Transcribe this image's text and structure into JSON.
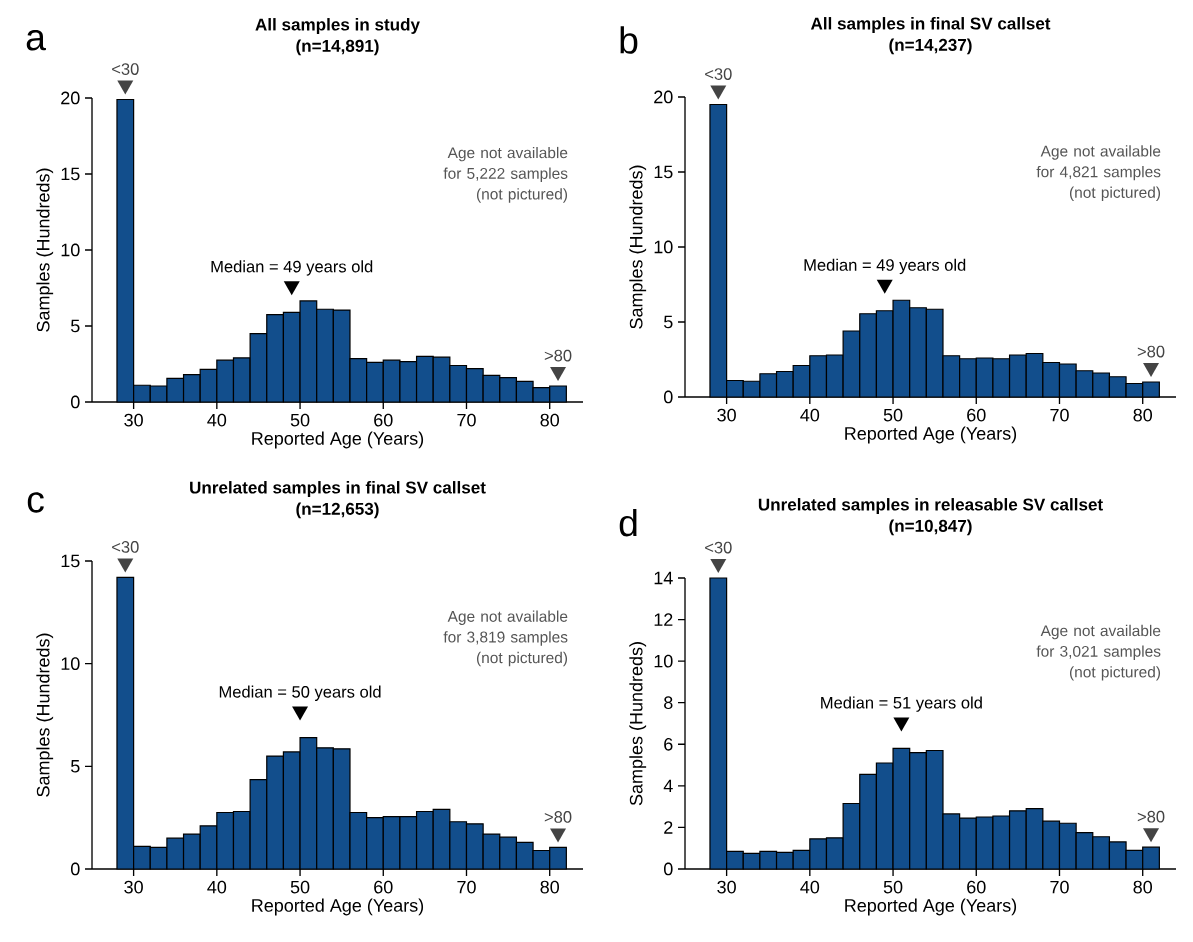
{
  "chart_data": [
    {
      "type": "histogram",
      "title": "All samples in study",
      "subtitle": "(n=14,891)",
      "xlabel": "Reported Age (Years)",
      "ylabel": "Samples (Hundreds)",
      "color": "#124e8c",
      "bins": [
        28,
        30,
        32,
        34,
        36,
        38,
        40,
        42,
        44,
        46,
        48,
        50,
        52,
        54,
        56,
        58,
        60,
        62,
        64,
        66,
        68,
        70,
        72,
        74,
        76,
        78,
        80,
        82
      ],
      "values": [
        19.9,
        1.1,
        1.05,
        1.55,
        1.8,
        2.15,
        2.75,
        2.9,
        4.5,
        5.75,
        5.9,
        6.65,
        6.1,
        6.05,
        2.85,
        2.6,
        2.75,
        2.65,
        3.0,
        2.95,
        2.4,
        2.2,
        1.75,
        1.6,
        1.35,
        0.95,
        1.05
      ],
      "xlim": [
        25,
        84
      ],
      "ylim": [
        0,
        20
      ],
      "xticks": [
        30,
        40,
        50,
        60,
        70,
        80
      ],
      "yticks": [
        0,
        5,
        10,
        15,
        20
      ],
      "annotations": [
        "a",
        {
          "text": "<30",
          "x": 29,
          "y": 19.9
        },
        {
          "text": ">80",
          "x": 81,
          "y": 1.05
        },
        {
          "text": "Median = 49 years old",
          "x": 49,
          "y": 5.9
        },
        "Age not available for 5,222 samples (not pictured)"
      ]
    },
    {
      "type": "histogram",
      "title": "All samples in final SV callset",
      "subtitle": "(n=14,237)",
      "xlabel": "Reported Age (Years)",
      "ylabel": "Samples (Hundreds)",
      "color": "#124e8c",
      "bins": [
        28,
        30,
        32,
        34,
        36,
        38,
        40,
        42,
        44,
        46,
        48,
        50,
        52,
        54,
        56,
        58,
        60,
        62,
        64,
        66,
        68,
        70,
        72,
        74,
        76,
        78,
        80,
        82
      ],
      "values": [
        19.5,
        1.1,
        1.05,
        1.55,
        1.7,
        2.1,
        2.75,
        2.8,
        4.4,
        5.55,
        5.75,
        6.45,
        5.95,
        5.85,
        2.75,
        2.55,
        2.6,
        2.55,
        2.8,
        2.9,
        2.3,
        2.2,
        1.75,
        1.6,
        1.35,
        0.9,
        1.0
      ],
      "xlim": [
        25,
        84
      ],
      "ylim": [
        0,
        20
      ],
      "xticks": [
        30,
        40,
        50,
        60,
        70,
        80
      ],
      "yticks": [
        0,
        5,
        10,
        15,
        20
      ],
      "annotations": [
        "b",
        {
          "text": "<30",
          "x": 29,
          "y": 19.5
        },
        {
          "text": ">80",
          "x": 81,
          "y": 1.0
        },
        {
          "text": "Median = 49 years old",
          "x": 49,
          "y": 5.75
        },
        "Age not available for 4,821 samples (not pictured)"
      ]
    },
    {
      "type": "histogram",
      "title": "Unrelated samples in final SV callset",
      "subtitle": "(n=12,653)",
      "xlabel": "Reported Age (Years)",
      "ylabel": "Samples (Hundreds)",
      "color": "#124e8c",
      "bins": [
        28,
        30,
        32,
        34,
        36,
        38,
        40,
        42,
        44,
        46,
        48,
        50,
        52,
        54,
        56,
        58,
        60,
        62,
        64,
        66,
        68,
        70,
        72,
        74,
        76,
        78,
        80,
        82
      ],
      "values": [
        14.2,
        1.1,
        1.05,
        1.5,
        1.7,
        2.1,
        2.75,
        2.8,
        4.35,
        5.5,
        5.7,
        6.4,
        5.9,
        5.85,
        2.75,
        2.5,
        2.55,
        2.55,
        2.8,
        2.9,
        2.3,
        2.2,
        1.7,
        1.55,
        1.3,
        0.9,
        1.05
      ],
      "xlim": [
        25,
        84
      ],
      "ylim": [
        0,
        15
      ],
      "xticks": [
        30,
        40,
        50,
        60,
        70,
        80
      ],
      "yticks": [
        0,
        5,
        10,
        15
      ],
      "annotations": [
        "c",
        {
          "text": "<30",
          "x": 29,
          "y": 14.2
        },
        {
          "text": ">80",
          "x": 81,
          "y": 1.05
        },
        {
          "text": "Median = 50 years old",
          "x": 50,
          "y": 6.4
        },
        "Age not available for 3,819 samples (not pictured)"
      ]
    },
    {
      "type": "histogram",
      "title": "Unrelated samples in releasable SV callset",
      "subtitle": "(n=10,847)",
      "xlabel": "Reported Age (Years)",
      "ylabel": "Samples (Hundreds)",
      "color": "#124e8c",
      "bins": [
        28,
        30,
        32,
        34,
        36,
        38,
        40,
        42,
        44,
        46,
        48,
        50,
        52,
        54,
        56,
        58,
        60,
        62,
        64,
        66,
        68,
        70,
        72,
        74,
        76,
        78,
        80,
        82
      ],
      "values": [
        14.0,
        0.85,
        0.75,
        0.85,
        0.8,
        0.9,
        1.45,
        1.5,
        3.15,
        4.55,
        5.1,
        5.8,
        5.6,
        5.7,
        2.65,
        2.45,
        2.5,
        2.55,
        2.8,
        2.9,
        2.3,
        2.2,
        1.75,
        1.55,
        1.3,
        0.9,
        1.05
      ],
      "xlim": [
        25,
        84
      ],
      "ylim": [
        0,
        14
      ],
      "xticks": [
        30,
        40,
        50,
        60,
        70,
        80
      ],
      "yticks": [
        0,
        2,
        4,
        6,
        8,
        10,
        12,
        14
      ],
      "annotations": [
        "d",
        {
          "text": "<30",
          "x": 29,
          "y": 14.0
        },
        {
          "text": ">80",
          "x": 81,
          "y": 1.05
        },
        {
          "text": "Median = 51 years old",
          "x": 51,
          "y": 5.8
        },
        "Age not available for 3,021 samples (not pictured)"
      ]
    }
  ]
}
